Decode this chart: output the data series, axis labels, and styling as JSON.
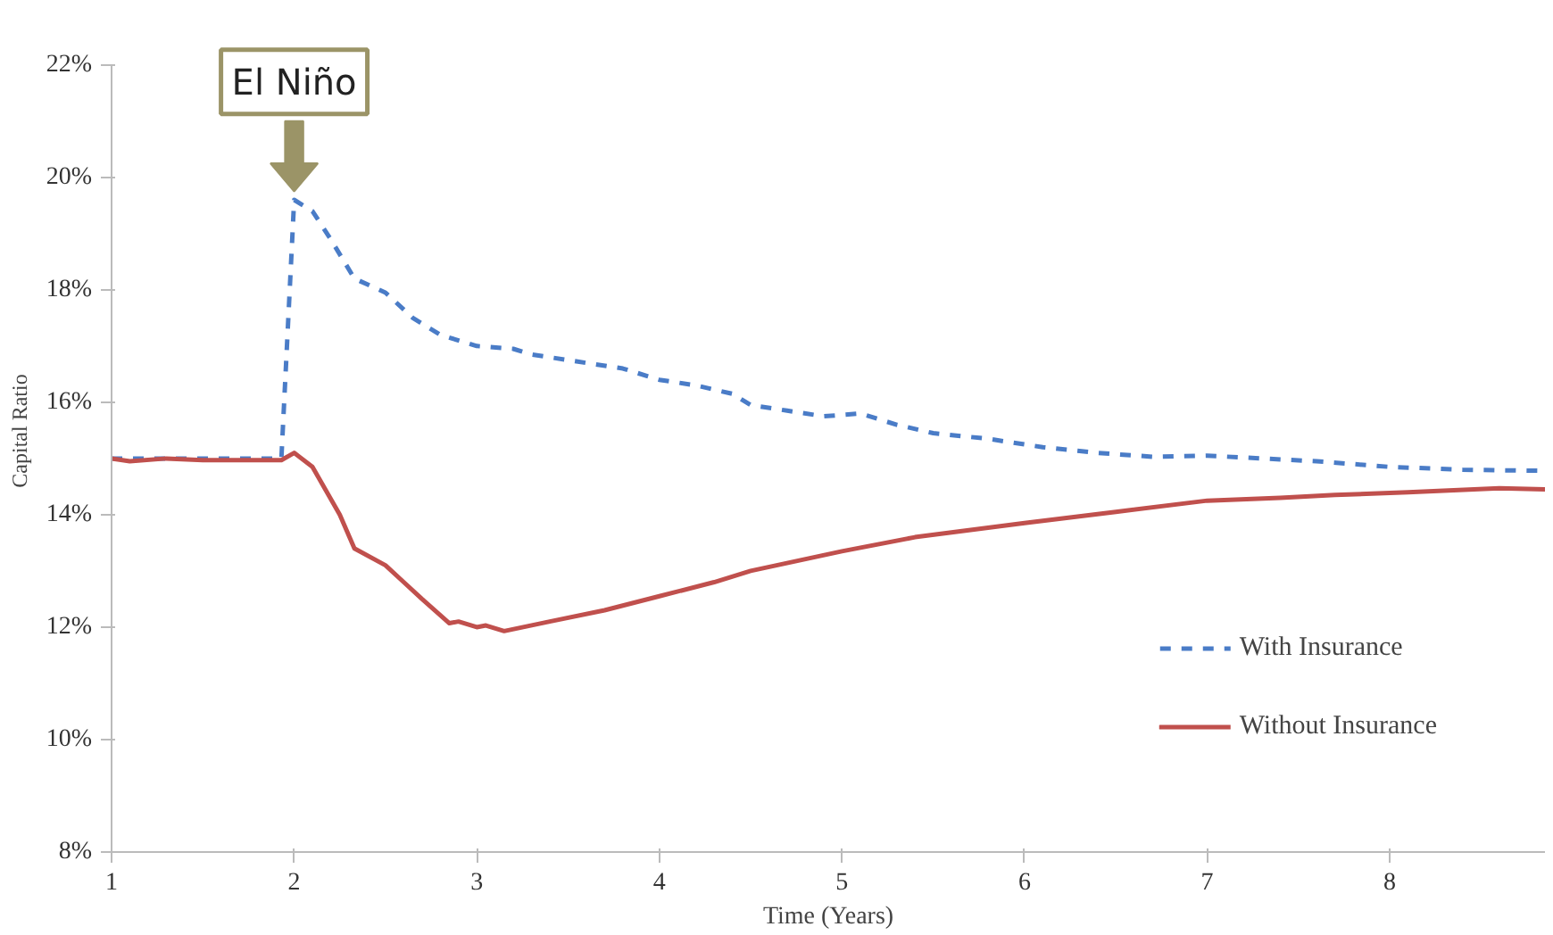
{
  "chart_data": {
    "type": "line",
    "xlabel": "Time (Years)",
    "ylabel": "Capital Ratio",
    "xlim": [
      1,
      8.85
    ],
    "xticks": [
      1,
      2,
      3,
      4,
      5,
      6,
      7,
      8
    ],
    "ylim": [
      8,
      22
    ],
    "yticks": [
      {
        "value": 8,
        "label": "8%"
      },
      {
        "value": 10,
        "label": "10%"
      },
      {
        "value": 12,
        "label": "12%"
      },
      {
        "value": 14,
        "label": "14%"
      },
      {
        "value": 16,
        "label": "16%"
      },
      {
        "value": 18,
        "label": "18%"
      },
      {
        "value": 20,
        "label": "20%"
      },
      {
        "value": 22,
        "label": "22%"
      }
    ],
    "grid": false,
    "legend": "bottom right",
    "annotations": [
      {
        "text": "El Niño",
        "x": 2,
        "y": 19.6
      }
    ],
    "series": [
      {
        "name": "With Insurance",
        "color": "#4a7cc7",
        "line_style": "dashed",
        "x": [
          1,
          1.3,
          1.6,
          1.93,
          2.0,
          2.1,
          2.2,
          2.33,
          2.5,
          2.65,
          2.8,
          3.0,
          3.2,
          3.3,
          3.5,
          3.8,
          4.0,
          4.2,
          4.4,
          4.5,
          4.7,
          4.9,
          5.1,
          5.3,
          5.5,
          5.8,
          6.1,
          6.4,
          6.7,
          7.0,
          7.3,
          7.6,
          8.0,
          8.4,
          8.85
        ],
        "values": [
          15,
          15,
          15,
          15,
          19.6,
          19.4,
          18.9,
          18.2,
          17.95,
          17.5,
          17.2,
          17.0,
          16.95,
          16.85,
          16.75,
          16.6,
          16.4,
          16.3,
          16.15,
          15.95,
          15.85,
          15.75,
          15.8,
          15.6,
          15.45,
          15.35,
          15.2,
          15.1,
          15.03,
          15.05,
          15.0,
          14.95,
          14.85,
          14.8,
          14.78
        ]
      },
      {
        "name": "Without Insurance",
        "color": "#c0504d",
        "line_style": "solid",
        "x": [
          1,
          1.1,
          1.3,
          1.5,
          1.93,
          2.0,
          2.1,
          2.25,
          2.33,
          2.5,
          2.6,
          2.7,
          2.85,
          2.9,
          3.0,
          3.05,
          3.15,
          3.4,
          3.7,
          4.0,
          4.3,
          4.5,
          5.0,
          5.4,
          6.0,
          6.5,
          7.0,
          7.4,
          7.7,
          8.1,
          8.6,
          8.85
        ],
        "values": [
          15,
          14.95,
          15.0,
          14.97,
          14.97,
          15.1,
          14.85,
          14.0,
          13.4,
          13.1,
          12.8,
          12.5,
          12.07,
          12.1,
          12.0,
          12.03,
          11.93,
          12.1,
          12.3,
          12.55,
          12.8,
          13.0,
          13.35,
          13.6,
          13.85,
          14.05,
          14.25,
          14.3,
          14.35,
          14.4,
          14.47,
          14.45
        ]
      }
    ]
  }
}
